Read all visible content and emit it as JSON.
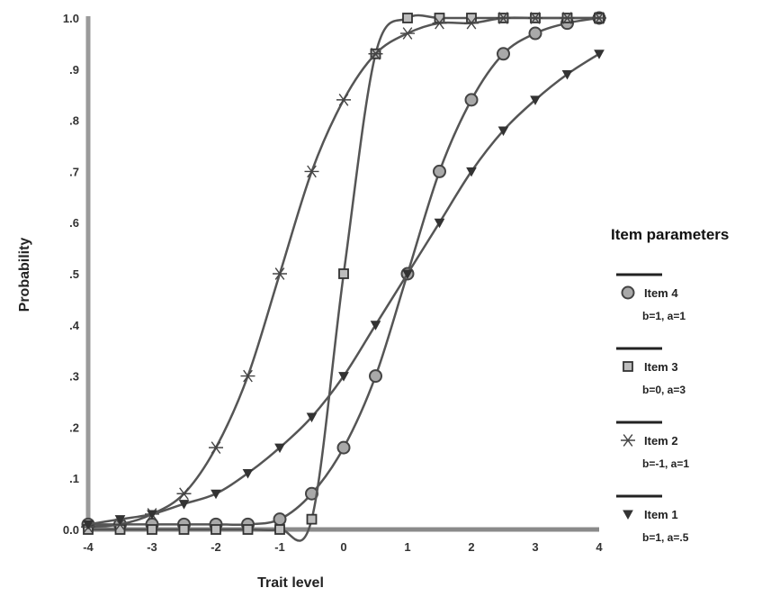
{
  "chart_data": {
    "type": "line",
    "title": "",
    "xlabel": "Trait level",
    "ylabel": "Probability",
    "xlim": [
      -4,
      4
    ],
    "ylim": [
      0,
      1
    ],
    "x_ticks": [
      "-4",
      "-3",
      "-2",
      "-1",
      "0",
      "1",
      "2",
      "3",
      "4"
    ],
    "y_ticks": [
      "0.0",
      ".1",
      ".2",
      ".3",
      ".4",
      ".5",
      ".6",
      ".7",
      ".8",
      ".9",
      "1.0"
    ],
    "grid": false,
    "legend": {
      "title": "Item parameters",
      "placement": "right"
    },
    "x": [
      -4,
      -3.5,
      -3,
      -2.5,
      -2,
      -1.5,
      -1,
      -0.5,
      0,
      0.5,
      1,
      1.5,
      2,
      2.5,
      3,
      3.5,
      4
    ],
    "series": [
      {
        "name": "Item 4",
        "params": "b=1, a=1",
        "marker": "circle",
        "values": [
          0.01,
          0.01,
          0.01,
          0.01,
          0.01,
          0.01,
          0.02,
          0.07,
          0.16,
          0.3,
          0.5,
          0.7,
          0.84,
          0.93,
          0.97,
          0.99,
          1.0
        ]
      },
      {
        "name": "Item 3",
        "params": "b=0, a=3",
        "marker": "square",
        "values": [
          0.0,
          0.0,
          0.0,
          0.0,
          0.0,
          0.0,
          0.0,
          0.02,
          0.5,
          0.93,
          1.0,
          1.0,
          1.0,
          1.0,
          1.0,
          1.0,
          1.0
        ]
      },
      {
        "name": "Item 2",
        "params": "b=-1, a=1",
        "marker": "asterisk",
        "values": [
          0.005,
          0.01,
          0.03,
          0.07,
          0.16,
          0.3,
          0.5,
          0.7,
          0.84,
          0.93,
          0.97,
          0.99,
          0.99,
          1.0,
          1.0,
          1.0,
          1.0
        ]
      },
      {
        "name": "Item 1",
        "params": "b=1, a=.5",
        "marker": "triangle-down",
        "values": [
          0.01,
          0.02,
          0.03,
          0.05,
          0.07,
          0.11,
          0.16,
          0.22,
          0.3,
          0.4,
          0.5,
          0.6,
          0.7,
          0.78,
          0.84,
          0.89,
          0.93
        ]
      }
    ]
  }
}
